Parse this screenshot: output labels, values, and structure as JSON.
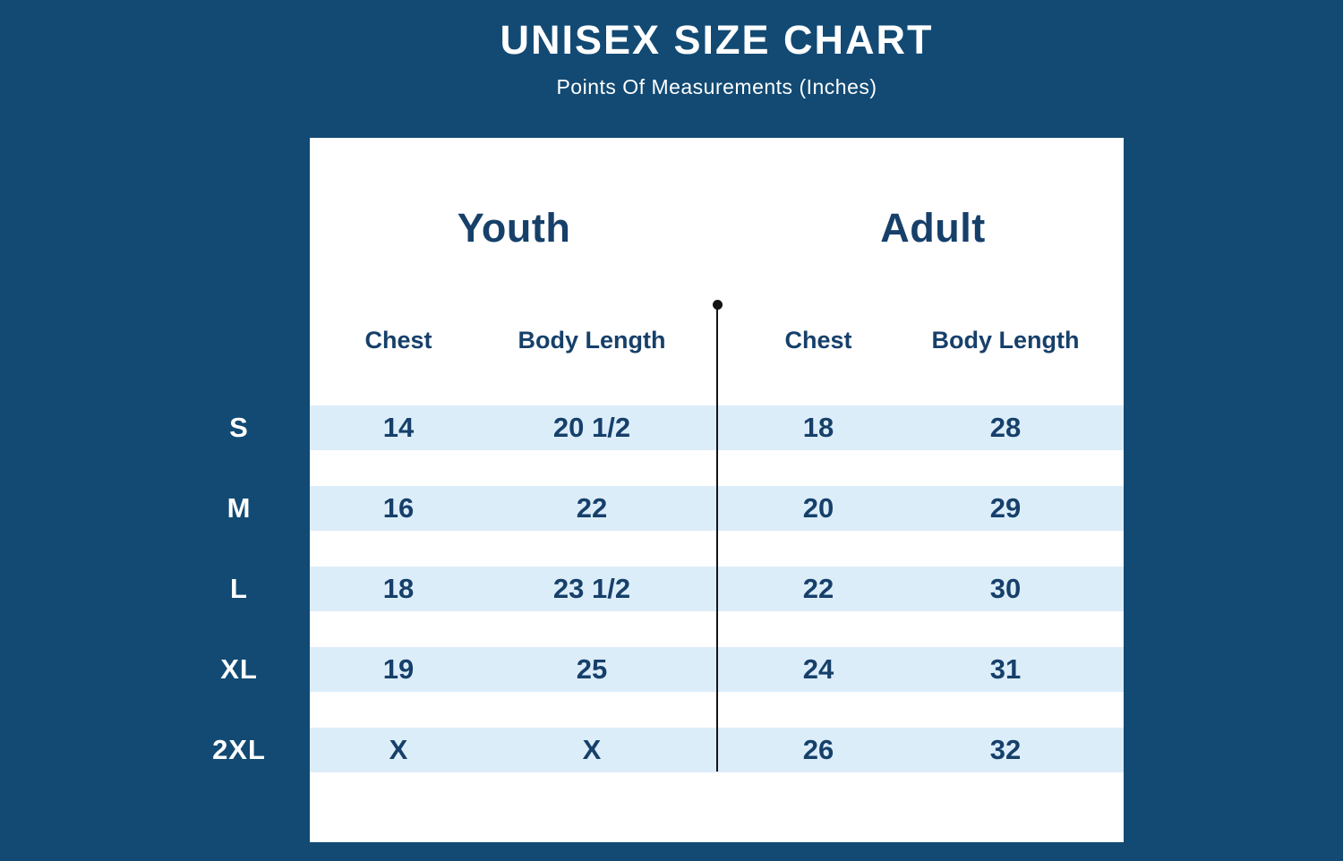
{
  "colors": {
    "background": "#124a73",
    "card": "#ffffff",
    "stripe": "#dcedfa",
    "text_navy": "#16406a",
    "text_white": "#ffffff",
    "divider": "#141414"
  },
  "chart_data": {
    "type": "table",
    "title": "UNISEX SIZE CHART",
    "subtitle": "Points Of Measurements (Inches)",
    "group_headers": [
      "Youth",
      "Adult"
    ],
    "column_headers": {
      "youth": [
        "Chest",
        "Body Length"
      ],
      "adult": [
        "Chest",
        "Body Length"
      ]
    },
    "row_labels": [
      "S",
      "M",
      "L",
      "XL",
      "2XL"
    ],
    "rows": [
      {
        "size": "S",
        "youth": {
          "chest": "14",
          "body_length": "20 1/2"
        },
        "adult": {
          "chest": "18",
          "body_length": "28"
        }
      },
      {
        "size": "M",
        "youth": {
          "chest": "16",
          "body_length": "22"
        },
        "adult": {
          "chest": "20",
          "body_length": "29"
        }
      },
      {
        "size": "L",
        "youth": {
          "chest": "18",
          "body_length": "23 1/2"
        },
        "adult": {
          "chest": "22",
          "body_length": "30"
        }
      },
      {
        "size": "XL",
        "youth": {
          "chest": "19",
          "body_length": "25"
        },
        "adult": {
          "chest": "24",
          "body_length": "31"
        }
      },
      {
        "size": "2XL",
        "youth": {
          "chest": "X",
          "body_length": "X"
        },
        "adult": {
          "chest": "26",
          "body_length": "32"
        }
      }
    ],
    "layout": {
      "grid": "off",
      "legend": "none",
      "units": "inches"
    }
  }
}
